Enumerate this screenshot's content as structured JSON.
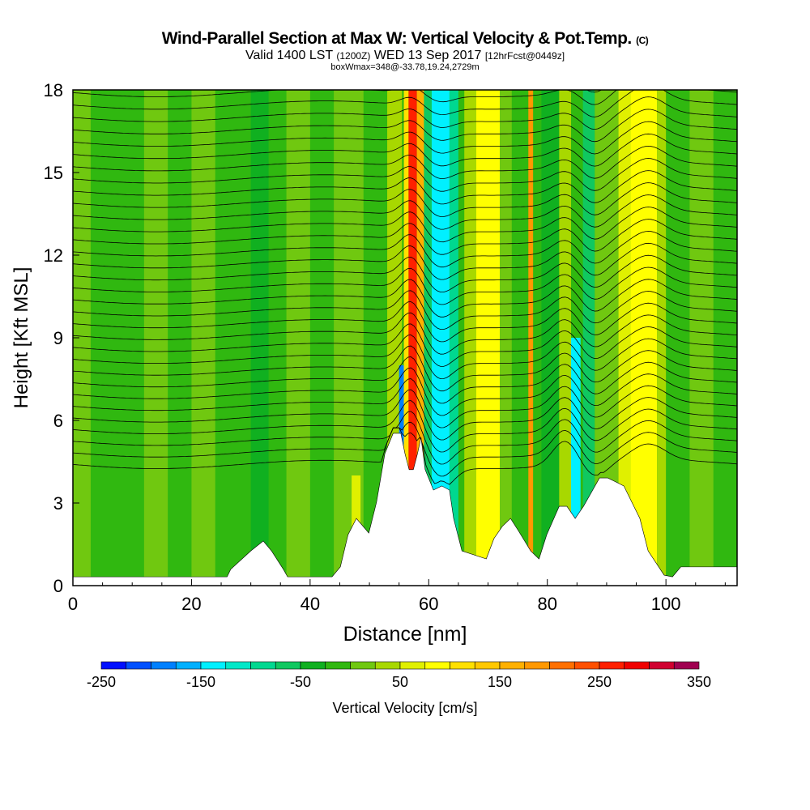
{
  "chart_data": {
    "type": "heatmap",
    "title": "Wind-Parallel Section at Max W: Vertical Velocity & Pot.Temp.",
    "title_suffix": "(C)",
    "subtitle_a": "Valid 1400 LST",
    "subtitle_b": "(1200Z)",
    "subtitle_c": "WED 13 Sep 2017",
    "subtitle_d": "[12hrFcst@0449z]",
    "subtitle2": "boxWmax=348@-33.78,19.24,2729m",
    "xlabel": "Distance [nm]",
    "ylabel": "Height [Kft MSL]",
    "xlim": [
      0,
      112
    ],
    "ylim": [
      0,
      18
    ],
    "xticks": [
      "0",
      "20",
      "40",
      "60",
      "80",
      "100"
    ],
    "yticks": [
      "0",
      "3",
      "6",
      "9",
      "12",
      "15",
      "18"
    ],
    "colorbar": {
      "label": "Vertical Velocity [cm/s]",
      "min": -250,
      "max": 350,
      "step": 25,
      "tick_labels": [
        "-250",
        "-150",
        "-50",
        "50",
        "150",
        "250",
        "350"
      ],
      "colors": [
        "#0010ff",
        "#0050ff",
        "#0080ff",
        "#00b0ff",
        "#00f0ff",
        "#00e8c8",
        "#00d890",
        "#10c860",
        "#10b020",
        "#30b810",
        "#70c810",
        "#a8d800",
        "#e0f000",
        "#ffff00",
        "#ffe000",
        "#ffc800",
        "#ffb000",
        "#ff9800",
        "#ff7000",
        "#ff5000",
        "#ff2000",
        "#f00000",
        "#d00030",
        "#a00050"
      ]
    },
    "background_w": -10,
    "w_bands": [
      {
        "x0": 0,
        "x1": 3,
        "w": 10
      },
      {
        "x0": 12,
        "x1": 16,
        "w": 10
      },
      {
        "x0": 20,
        "x1": 24,
        "w": 10
      },
      {
        "x0": 30,
        "x1": 33,
        "w": -40
      },
      {
        "x0": 36,
        "x1": 40,
        "w": 10
      },
      {
        "x0": 44,
        "x1": 49,
        "w": 10
      },
      {
        "x0": 47,
        "x1": 48.5,
        "w": 60,
        "ymax": 4
      },
      {
        "x0": 53,
        "x1": 55.5,
        "w": 30
      },
      {
        "x0": 55,
        "x1": 56.3,
        "w": -200,
        "ymax": 8
      },
      {
        "x0": 55.8,
        "x1": 56.6,
        "w": 120
      },
      {
        "x0": 56.6,
        "x1": 58,
        "w": 260
      },
      {
        "x0": 58,
        "x1": 59.2,
        "w": 150
      },
      {
        "x0": 59.2,
        "x1": 60.5,
        "w": -60
      },
      {
        "x0": 60.5,
        "x1": 63.5,
        "w": -140
      },
      {
        "x0": 63.5,
        "x1": 65,
        "w": -90
      },
      {
        "x0": 66,
        "x1": 68,
        "w": 30
      },
      {
        "x0": 68,
        "x1": 72,
        "w": 80
      },
      {
        "x0": 72,
        "x1": 74,
        "w": 20
      },
      {
        "x0": 76.8,
        "x1": 77.6,
        "w": 180
      },
      {
        "x0": 79,
        "x1": 82,
        "w": -40
      },
      {
        "x0": 82,
        "x1": 84,
        "w": 30
      },
      {
        "x0": 84,
        "x1": 85.6,
        "w": -130,
        "ymax": 9
      },
      {
        "x0": 86,
        "x1": 88,
        "w": -60
      },
      {
        "x0": 88,
        "x1": 92,
        "w": 10
      },
      {
        "x0": 92,
        "x1": 94,
        "w": 60
      },
      {
        "x0": 94,
        "x1": 98.5,
        "w": 90
      },
      {
        "x0": 98.5,
        "x1": 100,
        "w": 40
      },
      {
        "x0": 104,
        "x1": 108,
        "w": 10
      }
    ],
    "terrain": [
      [
        0,
        0.32
      ],
      [
        26,
        0.32
      ],
      [
        26.6,
        0.59
      ],
      [
        30,
        1.26
      ],
      [
        32.1,
        1.62
      ],
      [
        33.5,
        1.26
      ],
      [
        35.5,
        0.59
      ],
      [
        36.2,
        0.32
      ],
      [
        43.7,
        0.32
      ],
      [
        45.1,
        0.68
      ],
      [
        46.4,
        1.85
      ],
      [
        47.8,
        2.44
      ],
      [
        49.9,
        1.91
      ],
      [
        51.2,
        3.03
      ],
      [
        52.6,
        4.79
      ],
      [
        54,
        5.53
      ],
      [
        55.3,
        5.53
      ],
      [
        56,
        4.79
      ],
      [
        56.7,
        4.21
      ],
      [
        57.4,
        4.21
      ],
      [
        58.1,
        4.79
      ],
      [
        58.7,
        5.38
      ],
      [
        59.4,
        4.21
      ],
      [
        60.8,
        3.47
      ],
      [
        62.2,
        3.62
      ],
      [
        63.5,
        3.47
      ],
      [
        64.2,
        2.44
      ],
      [
        65.6,
        1.26
      ],
      [
        69.7,
        0.97
      ],
      [
        71,
        1.71
      ],
      [
        72.4,
        2.15
      ],
      [
        73.8,
        2.44
      ],
      [
        75.1,
        2.0
      ],
      [
        77.2,
        1.26
      ],
      [
        78.6,
        0.97
      ],
      [
        79.9,
        1.85
      ],
      [
        82,
        2.88
      ],
      [
        83.3,
        2.88
      ],
      [
        84.7,
        2.44
      ],
      [
        86.1,
        2.88
      ],
      [
        88.8,
        3.91
      ],
      [
        90.2,
        3.91
      ],
      [
        92.9,
        3.62
      ],
      [
        95.6,
        2.44
      ],
      [
        97,
        1.26
      ],
      [
        99.7,
        0.38
      ],
      [
        101.1,
        0.32
      ],
      [
        102.5,
        0.68
      ],
      [
        112,
        0.68
      ]
    ]
  }
}
